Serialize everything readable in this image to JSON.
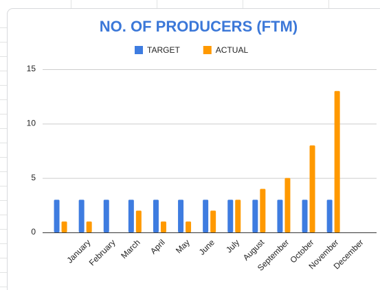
{
  "chart_data": {
    "type": "bar",
    "title": "NO. OF PRODUCERS (FTM)",
    "categories": [
      null,
      "January",
      "February",
      "March",
      "April",
      "May",
      "June",
      "July",
      "August",
      "September",
      "October",
      "November",
      "December"
    ],
    "series": [
      {
        "name": "TARGET",
        "color": "#3e7ce0",
        "values": [
          3,
          3,
          3,
          3,
          3,
          3,
          3,
          3,
          3,
          3,
          3,
          3,
          null
        ]
      },
      {
        "name": "ACTUAL",
        "color": "#ff9900",
        "values": [
          1,
          1,
          null,
          2,
          1,
          1,
          2,
          3,
          4,
          5,
          8,
          13,
          null
        ]
      }
    ],
    "ylim": [
      0,
      15
    ],
    "yticks": [
      0,
      5,
      10,
      15
    ],
    "grid": true,
    "legend": "top"
  }
}
